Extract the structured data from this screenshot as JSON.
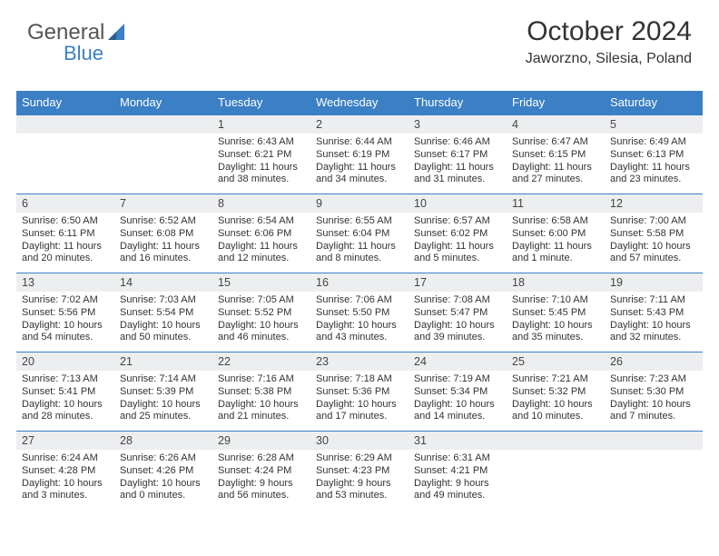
{
  "logo": {
    "text_general": "General",
    "text_blue": "Blue"
  },
  "header": {
    "month_year": "October 2024",
    "location": "Jaworzno, Silesia, Poland"
  },
  "colors": {
    "accent": "#3b7fc4",
    "header_text": "#333333",
    "body_text": "#333333",
    "day_head_bg": "#eceef0",
    "page_bg": "#ffffff",
    "logo_gray": "#555555"
  },
  "typography": {
    "month_fontsize": 30,
    "location_fontsize": 16,
    "weekday_fontsize": 13,
    "daynum_fontsize": 12.5,
    "body_fontsize": 11
  },
  "weekdays": [
    "Sunday",
    "Monday",
    "Tuesday",
    "Wednesday",
    "Thursday",
    "Friday",
    "Saturday"
  ],
  "weeks": [
    [
      {
        "num": "",
        "sunrise": "",
        "sunset": "",
        "daylight": ""
      },
      {
        "num": "",
        "sunrise": "",
        "sunset": "",
        "daylight": ""
      },
      {
        "num": "1",
        "sunrise": "Sunrise: 6:43 AM",
        "sunset": "Sunset: 6:21 PM",
        "daylight": "Daylight: 11 hours and 38 minutes."
      },
      {
        "num": "2",
        "sunrise": "Sunrise: 6:44 AM",
        "sunset": "Sunset: 6:19 PM",
        "daylight": "Daylight: 11 hours and 34 minutes."
      },
      {
        "num": "3",
        "sunrise": "Sunrise: 6:46 AM",
        "sunset": "Sunset: 6:17 PM",
        "daylight": "Daylight: 11 hours and 31 minutes."
      },
      {
        "num": "4",
        "sunrise": "Sunrise: 6:47 AM",
        "sunset": "Sunset: 6:15 PM",
        "daylight": "Daylight: 11 hours and 27 minutes."
      },
      {
        "num": "5",
        "sunrise": "Sunrise: 6:49 AM",
        "sunset": "Sunset: 6:13 PM",
        "daylight": "Daylight: 11 hours and 23 minutes."
      }
    ],
    [
      {
        "num": "6",
        "sunrise": "Sunrise: 6:50 AM",
        "sunset": "Sunset: 6:11 PM",
        "daylight": "Daylight: 11 hours and 20 minutes."
      },
      {
        "num": "7",
        "sunrise": "Sunrise: 6:52 AM",
        "sunset": "Sunset: 6:08 PM",
        "daylight": "Daylight: 11 hours and 16 minutes."
      },
      {
        "num": "8",
        "sunrise": "Sunrise: 6:54 AM",
        "sunset": "Sunset: 6:06 PM",
        "daylight": "Daylight: 11 hours and 12 minutes."
      },
      {
        "num": "9",
        "sunrise": "Sunrise: 6:55 AM",
        "sunset": "Sunset: 6:04 PM",
        "daylight": "Daylight: 11 hours and 8 minutes."
      },
      {
        "num": "10",
        "sunrise": "Sunrise: 6:57 AM",
        "sunset": "Sunset: 6:02 PM",
        "daylight": "Daylight: 11 hours and 5 minutes."
      },
      {
        "num": "11",
        "sunrise": "Sunrise: 6:58 AM",
        "sunset": "Sunset: 6:00 PM",
        "daylight": "Daylight: 11 hours and 1 minute."
      },
      {
        "num": "12",
        "sunrise": "Sunrise: 7:00 AM",
        "sunset": "Sunset: 5:58 PM",
        "daylight": "Daylight: 10 hours and 57 minutes."
      }
    ],
    [
      {
        "num": "13",
        "sunrise": "Sunrise: 7:02 AM",
        "sunset": "Sunset: 5:56 PM",
        "daylight": "Daylight: 10 hours and 54 minutes."
      },
      {
        "num": "14",
        "sunrise": "Sunrise: 7:03 AM",
        "sunset": "Sunset: 5:54 PM",
        "daylight": "Daylight: 10 hours and 50 minutes."
      },
      {
        "num": "15",
        "sunrise": "Sunrise: 7:05 AM",
        "sunset": "Sunset: 5:52 PM",
        "daylight": "Daylight: 10 hours and 46 minutes."
      },
      {
        "num": "16",
        "sunrise": "Sunrise: 7:06 AM",
        "sunset": "Sunset: 5:50 PM",
        "daylight": "Daylight: 10 hours and 43 minutes."
      },
      {
        "num": "17",
        "sunrise": "Sunrise: 7:08 AM",
        "sunset": "Sunset: 5:47 PM",
        "daylight": "Daylight: 10 hours and 39 minutes."
      },
      {
        "num": "18",
        "sunrise": "Sunrise: 7:10 AM",
        "sunset": "Sunset: 5:45 PM",
        "daylight": "Daylight: 10 hours and 35 minutes."
      },
      {
        "num": "19",
        "sunrise": "Sunrise: 7:11 AM",
        "sunset": "Sunset: 5:43 PM",
        "daylight": "Daylight: 10 hours and 32 minutes."
      }
    ],
    [
      {
        "num": "20",
        "sunrise": "Sunrise: 7:13 AM",
        "sunset": "Sunset: 5:41 PM",
        "daylight": "Daylight: 10 hours and 28 minutes."
      },
      {
        "num": "21",
        "sunrise": "Sunrise: 7:14 AM",
        "sunset": "Sunset: 5:39 PM",
        "daylight": "Daylight: 10 hours and 25 minutes."
      },
      {
        "num": "22",
        "sunrise": "Sunrise: 7:16 AM",
        "sunset": "Sunset: 5:38 PM",
        "daylight": "Daylight: 10 hours and 21 minutes."
      },
      {
        "num": "23",
        "sunrise": "Sunrise: 7:18 AM",
        "sunset": "Sunset: 5:36 PM",
        "daylight": "Daylight: 10 hours and 17 minutes."
      },
      {
        "num": "24",
        "sunrise": "Sunrise: 7:19 AM",
        "sunset": "Sunset: 5:34 PM",
        "daylight": "Daylight: 10 hours and 14 minutes."
      },
      {
        "num": "25",
        "sunrise": "Sunrise: 7:21 AM",
        "sunset": "Sunset: 5:32 PM",
        "daylight": "Daylight: 10 hours and 10 minutes."
      },
      {
        "num": "26",
        "sunrise": "Sunrise: 7:23 AM",
        "sunset": "Sunset: 5:30 PM",
        "daylight": "Daylight: 10 hours and 7 minutes."
      }
    ],
    [
      {
        "num": "27",
        "sunrise": "Sunrise: 6:24 AM",
        "sunset": "Sunset: 4:28 PM",
        "daylight": "Daylight: 10 hours and 3 minutes."
      },
      {
        "num": "28",
        "sunrise": "Sunrise: 6:26 AM",
        "sunset": "Sunset: 4:26 PM",
        "daylight": "Daylight: 10 hours and 0 minutes."
      },
      {
        "num": "29",
        "sunrise": "Sunrise: 6:28 AM",
        "sunset": "Sunset: 4:24 PM",
        "daylight": "Daylight: 9 hours and 56 minutes."
      },
      {
        "num": "30",
        "sunrise": "Sunrise: 6:29 AM",
        "sunset": "Sunset: 4:23 PM",
        "daylight": "Daylight: 9 hours and 53 minutes."
      },
      {
        "num": "31",
        "sunrise": "Sunrise: 6:31 AM",
        "sunset": "Sunset: 4:21 PM",
        "daylight": "Daylight: 9 hours and 49 minutes."
      },
      {
        "num": "",
        "sunrise": "",
        "sunset": "",
        "daylight": ""
      },
      {
        "num": "",
        "sunrise": "",
        "sunset": "",
        "daylight": ""
      }
    ]
  ]
}
